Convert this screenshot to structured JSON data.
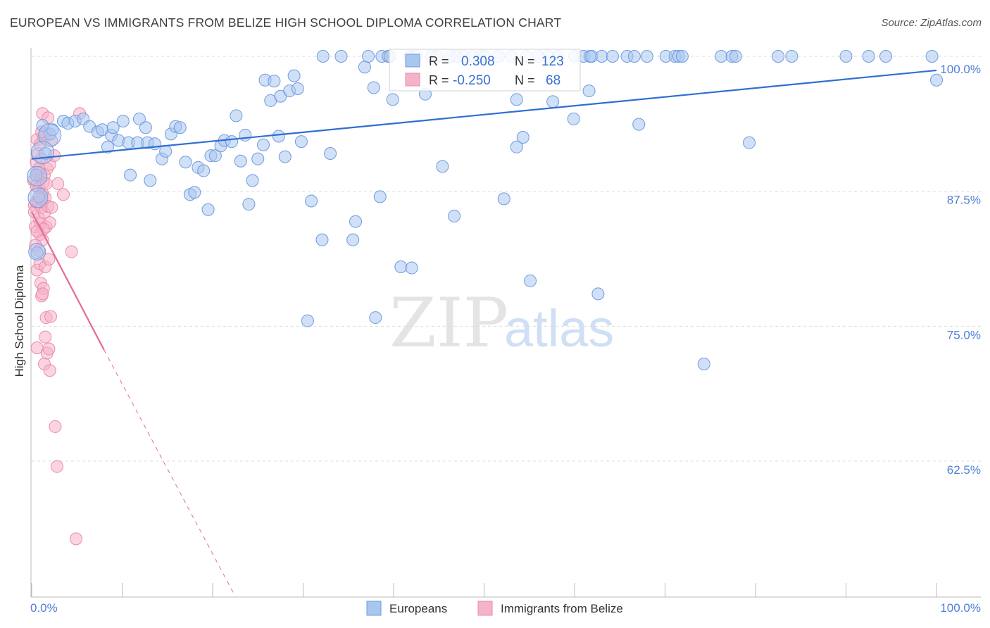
{
  "title": "EUROPEAN VS IMMIGRANTS FROM BELIZE HIGH SCHOOL DIPLOMA CORRELATION CHART",
  "source": "Source: ZipAtlas.com",
  "watermark": {
    "zip": "ZIP",
    "atlas": "atlas"
  },
  "colors": {
    "blue_fill": "#a9c6f0",
    "blue_stroke": "#6f9be0",
    "blue_line": "#2f6fd1",
    "pink_fill": "#f5b3c9",
    "pink_stroke": "#ec8aab",
    "pink_line": "#e46a99",
    "grid": "#dcdcdc",
    "tick_text": "#4f7fd6"
  },
  "stats": [
    {
      "series": "Europeans",
      "r_label": "R =",
      "r_value": "0.308",
      "n_label": "N =",
      "n_value": "123"
    },
    {
      "series": "Immigrants from Belize",
      "r_label": "R =",
      "r_value": "-0.250",
      "n_label": "N =",
      "n_value": "68"
    }
  ],
  "chart_data": {
    "type": "scatter",
    "title": "EUROPEAN VS IMMIGRANTS FROM BELIZE HIGH SCHOOL DIPLOMA CORRELATION CHART",
    "xlabel": "",
    "ylabel": "High School Diploma",
    "xlim": [
      0,
      100
    ],
    "ylim": [
      50,
      100
    ],
    "x_tick_labels": [
      "0.0%",
      "100.0%"
    ],
    "y_ticks": [
      62.5,
      75.0,
      87.5,
      100.0
    ],
    "y_tick_labels": [
      "62.5%",
      "75.0%",
      "87.5%",
      "100.0%"
    ],
    "grid": true,
    "legend": [
      "Europeans",
      "Immigrants from Belize"
    ],
    "series": [
      {
        "name": "Europeans",
        "trend": {
          "x": [
            0,
            100
          ],
          "y": [
            90.5,
            98.7
          ],
          "style": "solid"
        },
        "points": [
          [
            0.5,
            89.0
          ],
          [
            0.8,
            87.0
          ],
          [
            0.6,
            81.8
          ],
          [
            1.5,
            91.0
          ],
          [
            2.0,
            92.8
          ],
          [
            2.3,
            93.2
          ],
          [
            3.5,
            94.0
          ],
          [
            4.0,
            93.8
          ],
          [
            4.8,
            94.0
          ],
          [
            5.7,
            94.2
          ],
          [
            6.4,
            93.5
          ],
          [
            7.3,
            93.0
          ],
          [
            7.8,
            93.2
          ],
          [
            8.4,
            91.6
          ],
          [
            8.8,
            92.7
          ],
          [
            9.6,
            92.2
          ],
          [
            10.1,
            94.0
          ],
          [
            10.7,
            92.0
          ],
          [
            10.9,
            89.0
          ],
          [
            11.7,
            92.0
          ],
          [
            11.9,
            94.2
          ],
          [
            12.6,
            93.4
          ],
          [
            12.8,
            92.0
          ],
          [
            13.1,
            88.5
          ],
          [
            13.6,
            91.9
          ],
          [
            14.4,
            90.5
          ],
          [
            14.8,
            91.2
          ],
          [
            15.4,
            92.8
          ],
          [
            15.9,
            93.5
          ],
          [
            16.4,
            93.4
          ],
          [
            17.0,
            90.2
          ],
          [
            17.5,
            87.2
          ],
          [
            18.0,
            87.4
          ],
          [
            18.4,
            89.7
          ],
          [
            19.0,
            89.4
          ],
          [
            19.5,
            85.8
          ],
          [
            19.8,
            90.8
          ],
          [
            20.3,
            90.8
          ],
          [
            20.9,
            91.7
          ],
          [
            21.3,
            92.2
          ],
          [
            22.1,
            92.1
          ],
          [
            22.6,
            94.5
          ],
          [
            23.1,
            90.3
          ],
          [
            23.6,
            92.7
          ],
          [
            24.0,
            86.3
          ],
          [
            24.4,
            88.5
          ],
          [
            25.0,
            90.5
          ],
          [
            25.6,
            91.8
          ],
          [
            25.8,
            97.8
          ],
          [
            26.4,
            95.9
          ],
          [
            26.8,
            97.7
          ],
          [
            27.3,
            92.6
          ],
          [
            27.5,
            96.3
          ],
          [
            28.0,
            90.7
          ],
          [
            28.5,
            96.8
          ],
          [
            29.0,
            98.2
          ],
          [
            29.4,
            97.0
          ],
          [
            29.8,
            92.1
          ],
          [
            30.5,
            75.5
          ],
          [
            30.9,
            86.6
          ],
          [
            32.1,
            83.0
          ],
          [
            32.2,
            100.0
          ],
          [
            33.0,
            91.0
          ],
          [
            34.2,
            100.0
          ],
          [
            35.5,
            83.0
          ],
          [
            35.8,
            84.7
          ],
          [
            36.8,
            99.0
          ],
          [
            37.2,
            100.0
          ],
          [
            37.8,
            97.1
          ],
          [
            38.0,
            75.8
          ],
          [
            38.5,
            87.0
          ],
          [
            38.7,
            100.0
          ],
          [
            39.4,
            100.0
          ],
          [
            39.6,
            100.0
          ],
          [
            39.9,
            96.0
          ],
          [
            40.8,
            80.5
          ],
          [
            41.8,
            100.0
          ],
          [
            42.0,
            80.4
          ],
          [
            42.5,
            100.0
          ],
          [
            43.5,
            96.5
          ],
          [
            44.2,
            100.0
          ],
          [
            44.8,
            100.0
          ],
          [
            45.4,
            89.8
          ],
          [
            46.3,
            100.0
          ],
          [
            46.7,
            85.2
          ],
          [
            47.0,
            100.0
          ],
          [
            47.8,
            100.0
          ],
          [
            48.7,
            100.0
          ],
          [
            49.6,
            100.0
          ],
          [
            50.1,
            100.0
          ],
          [
            51.6,
            100.0
          ],
          [
            52.2,
            86.8
          ],
          [
            53.0,
            100.0
          ],
          [
            53.6,
            96.0
          ],
          [
            53.6,
            91.6
          ],
          [
            54.3,
            92.5
          ],
          [
            54.7,
            100.0
          ],
          [
            55.1,
            79.2
          ],
          [
            56.0,
            100.0
          ],
          [
            57.1,
            100.0
          ],
          [
            57.6,
            95.8
          ],
          [
            58.2,
            100.0
          ],
          [
            59.9,
            94.2
          ],
          [
            60.0,
            100.0
          ],
          [
            61.0,
            100.0
          ],
          [
            61.6,
            96.8
          ],
          [
            61.7,
            100.0
          ],
          [
            61.9,
            100.0
          ],
          [
            62.6,
            78.0
          ],
          [
            63.0,
            100.0
          ],
          [
            64.2,
            100.0
          ],
          [
            65.8,
            100.0
          ],
          [
            66.6,
            100.0
          ],
          [
            67.1,
            93.7
          ],
          [
            68.0,
            100.0
          ],
          [
            70.1,
            100.0
          ],
          [
            71.1,
            100.0
          ],
          [
            71.5,
            100.0
          ],
          [
            71.9,
            100.0
          ],
          [
            74.3,
            71.5
          ],
          [
            76.2,
            100.0
          ],
          [
            77.4,
            100.0
          ],
          [
            77.8,
            100.0
          ],
          [
            79.3,
            92.0
          ],
          [
            82.5,
            100.0
          ],
          [
            84.0,
            100.0
          ],
          [
            90.0,
            100.0
          ],
          [
            92.5,
            100.0
          ],
          [
            94.4,
            100.0
          ],
          [
            99.5,
            100.0
          ],
          [
            100.0,
            97.8
          ],
          [
            1.2,
            93.6
          ],
          [
            9.0,
            93.4
          ]
        ]
      },
      {
        "name": "Immigrants from Belize",
        "trend": {
          "x": [
            0,
            8.0,
            22.5
          ],
          "y": [
            85.6,
            72.8,
            49.5
          ],
          "style": "solid-then-dashed"
        },
        "points": [
          [
            0.2,
            88.5
          ],
          [
            0.3,
            86.2
          ],
          [
            0.3,
            85.6
          ],
          [
            0.4,
            84.2
          ],
          [
            0.5,
            90.2
          ],
          [
            0.5,
            88.0
          ],
          [
            0.5,
            86.5
          ],
          [
            0.6,
            92.3
          ],
          [
            0.6,
            80.2
          ],
          [
            0.6,
            73.0
          ],
          [
            0.7,
            91.0
          ],
          [
            0.7,
            89.2
          ],
          [
            0.7,
            86.5
          ],
          [
            0.8,
            87.8
          ],
          [
            0.8,
            85.0
          ],
          [
            0.8,
            82.0
          ],
          [
            0.9,
            83.5
          ],
          [
            0.9,
            80.8
          ],
          [
            1.0,
            88.9
          ],
          [
            1.0,
            84.5
          ],
          [
            1.0,
            79.0
          ],
          [
            1.1,
            90.5
          ],
          [
            1.1,
            86.0
          ],
          [
            1.1,
            77.8
          ],
          [
            1.2,
            94.7
          ],
          [
            1.2,
            87.3
          ],
          [
            1.2,
            83.0
          ],
          [
            1.3,
            92.5
          ],
          [
            1.3,
            88.3
          ],
          [
            1.3,
            78.5
          ],
          [
            1.4,
            89.0
          ],
          [
            1.4,
            85.5
          ],
          [
            1.4,
            71.5
          ],
          [
            1.5,
            92.8
          ],
          [
            1.5,
            86.9
          ],
          [
            1.5,
            80.5
          ],
          [
            1.6,
            88.2
          ],
          [
            1.6,
            84.2
          ],
          [
            1.6,
            75.8
          ],
          [
            1.7,
            89.6
          ],
          [
            1.7,
            72.5
          ],
          [
            1.8,
            94.3
          ],
          [
            1.8,
            86.1
          ],
          [
            1.9,
            81.2
          ],
          [
            1.9,
            72.9
          ],
          [
            2.0,
            90.0
          ],
          [
            2.0,
            84.6
          ],
          [
            2.0,
            70.9
          ],
          [
            2.1,
            75.9
          ],
          [
            2.2,
            92.2
          ],
          [
            2.2,
            86.0
          ],
          [
            2.5,
            90.8
          ],
          [
            2.6,
            65.7
          ],
          [
            2.8,
            62.0
          ],
          [
            2.9,
            88.2
          ],
          [
            3.5,
            87.2
          ],
          [
            4.4,
            81.9
          ],
          [
            4.9,
            55.3
          ],
          [
            5.3,
            94.7
          ],
          [
            0.4,
            82.5
          ],
          [
            0.9,
            91.8
          ],
          [
            1.1,
            93.0
          ],
          [
            1.3,
            84.0
          ],
          [
            0.8,
            89.6
          ],
          [
            1.0,
            86.8
          ],
          [
            1.2,
            78.0
          ],
          [
            0.6,
            83.8
          ],
          [
            1.5,
            74.0
          ]
        ]
      }
    ]
  }
}
